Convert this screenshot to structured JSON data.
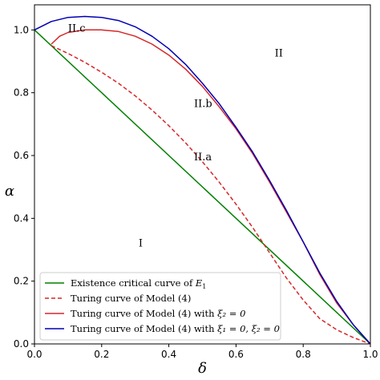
{
  "chart_data": {
    "type": "line",
    "xlabel": "δ",
    "ylabel": "α",
    "xlim": [
      0.0,
      1.0
    ],
    "ylim": [
      0.0,
      1.08
    ],
    "xticks": [
      "0.0",
      "0.2",
      "0.4",
      "0.6",
      "0.8",
      "1.0"
    ],
    "yticks": [
      "0.0",
      "0.2",
      "0.4",
      "0.6",
      "0.8",
      "1.0"
    ],
    "grid": false,
    "legend_position": "lower-left",
    "regions": [
      {
        "label": "I",
        "x": 0.31,
        "y": 0.31
      },
      {
        "label": "II",
        "x": 0.715,
        "y": 0.915
      },
      {
        "label": "II.a",
        "x": 0.475,
        "y": 0.585
      },
      {
        "label": "II.b",
        "x": 0.475,
        "y": 0.755
      },
      {
        "label": "II.c",
        "x": 0.1,
        "y": 0.995
      }
    ],
    "series": [
      {
        "name": "Existence critical curve of E_1",
        "legend_label": "Existence critical curve of ",
        "legend_math": "E",
        "legend_sub": "1",
        "color": "#008000",
        "style": "solid",
        "x": [
          0.0,
          1.0
        ],
        "y": [
          1.0,
          0.0
        ]
      },
      {
        "name": "Turing curve of Model (4)",
        "legend_label": "Turing curve of Model (4)",
        "color": "#d62728",
        "style": "dashed",
        "x": [
          0.05,
          0.1,
          0.15,
          0.2,
          0.25,
          0.3,
          0.35,
          0.4,
          0.45,
          0.5,
          0.55,
          0.6,
          0.65,
          0.7,
          0.75,
          0.8,
          0.85,
          0.9,
          0.95,
          1.0
        ],
        "y": [
          0.95,
          0.925,
          0.897,
          0.865,
          0.83,
          0.79,
          0.745,
          0.695,
          0.64,
          0.58,
          0.515,
          0.445,
          0.37,
          0.29,
          0.21,
          0.14,
          0.08,
          0.045,
          0.02,
          0.0
        ]
      },
      {
        "name": "Turing curve of Model (4) with ξ2 = 0",
        "legend_label": "Turing curve of Model (4) with ",
        "legend_math": "ξ₂ = 0",
        "color": "#d62728",
        "style": "solid",
        "x": [
          0.05,
          0.075,
          0.1,
          0.15,
          0.2,
          0.25,
          0.3,
          0.35,
          0.4,
          0.45,
          0.5,
          0.55,
          0.6,
          0.65,
          0.7,
          0.75,
          0.8,
          0.85,
          0.9,
          0.95,
          1.0
        ],
        "y": [
          0.955,
          0.98,
          0.992,
          1.0,
          1.0,
          0.995,
          0.98,
          0.955,
          0.92,
          0.875,
          0.82,
          0.755,
          0.685,
          0.605,
          0.515,
          0.42,
          0.325,
          0.22,
          0.13,
          0.06,
          0.0
        ]
      },
      {
        "name": "Turing curve of Model (4) with ξ1 = 0, ξ2 = 0",
        "legend_label": "Turing curve of Model (4) with ",
        "legend_math": "ξ₁ = 0, ξ₂ = 0",
        "color": "#0000b3",
        "style": "solid",
        "x": [
          0.0,
          0.05,
          0.1,
          0.15,
          0.2,
          0.25,
          0.3,
          0.35,
          0.4,
          0.45,
          0.5,
          0.55,
          0.6,
          0.65,
          0.7,
          0.75,
          0.8,
          0.85,
          0.9,
          0.95,
          1.0
        ],
        "y": [
          1.0,
          1.027,
          1.04,
          1.043,
          1.04,
          1.03,
          1.01,
          0.98,
          0.94,
          0.89,
          0.83,
          0.765,
          0.69,
          0.61,
          0.52,
          0.425,
          0.325,
          0.225,
          0.135,
          0.06,
          0.0
        ]
      }
    ]
  }
}
